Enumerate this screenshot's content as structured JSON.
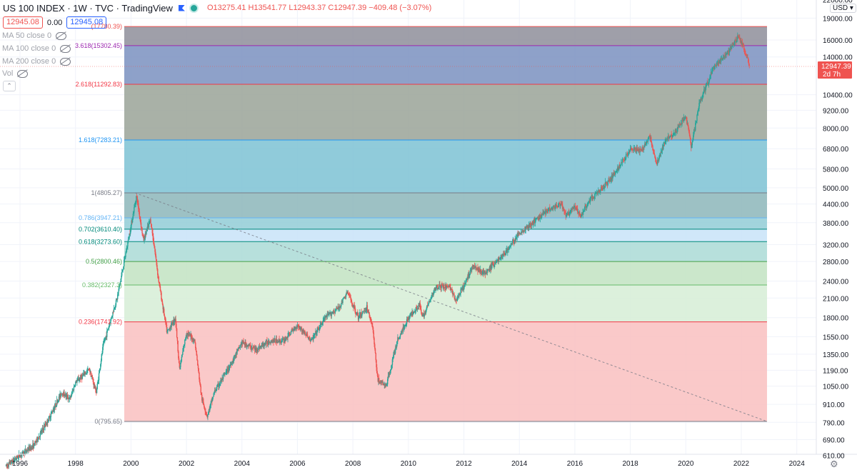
{
  "header": {
    "symbol": "US 100 INDEX · 1W · TVC · TradingView",
    "open": "O13275.41",
    "high": "H13541.77",
    "low": "L12943.37",
    "close": "C12947.39",
    "change": "−409.48 (−3.07%)",
    "sell_price": "12945.08",
    "spread": "0.00",
    "buy_price": "12945.08"
  },
  "indicators": [
    {
      "label": "MA 50 close 0"
    },
    {
      "label": "MA 100 close 0"
    },
    {
      "label": "MA 200 close 0"
    },
    {
      "label": "Vol"
    }
  ],
  "currency": "USD",
  "colors": {
    "up": "#26a69a",
    "down": "#ef5350",
    "axis_text": "#131722",
    "accent": "#2962ff"
  },
  "chart_data": {
    "type": "line",
    "scale": "log",
    "x_ticks": [
      "1996",
      "1998",
      "2000",
      "2002",
      "2004",
      "2006",
      "2008",
      "2010",
      "2012",
      "2014",
      "2016",
      "2018",
      "2020",
      "2022",
      "2024"
    ],
    "y_ticks": [
      "19000.00",
      "16000.00",
      "14000.00",
      "10400.00",
      "9200.00",
      "8000.00",
      "6800.00",
      "5800.00",
      "5000.00",
      "4400.00",
      "3800.00",
      "3200.00",
      "2800.00",
      "2400.00",
      "2100.00",
      "1800.00",
      "1550.00",
      "1350.00",
      "1190.00",
      "1050.00",
      "910.00",
      "790.00",
      "690.00",
      "610.00"
    ],
    "y_ticks_partial": [
      "22000.00"
    ],
    "last_price": "12947.39",
    "countdown": "2d 7h",
    "fib_levels": [
      {
        "label": "(17780.39)",
        "value": 17780.39,
        "color": "#ef5350",
        "fill": "#8e8e9a"
      },
      {
        "label": "3.618(15302.45)",
        "value": 15302.45,
        "color": "#9c27b0",
        "fill": "#7a90c0"
      },
      {
        "label": "2.618(11292.83)",
        "value": 11292.83,
        "color": "#f23645",
        "fill": "#9aa398"
      },
      {
        "label": "1.618(7283.21)",
        "value": 7283.21,
        "color": "#2196f3",
        "fill": "#7dc2d4"
      },
      {
        "label": "1(4805.27)",
        "value": 4805.27,
        "color": "#787b86",
        "fill": "#8cb6ba"
      },
      {
        "label": "0.786(3947.21)",
        "value": 3947.21,
        "color": "#64b5f6",
        "fill": "#92ccd6"
      },
      {
        "label": "0.702(3610.40)",
        "value": 3610.4,
        "color": "#00897b",
        "fill": "#c8e3f8"
      },
      {
        "label": "0.618(3273.60)",
        "value": 3273.6,
        "color": "#00897b",
        "fill": "#aadbd6"
      },
      {
        "label": "0.5(2800.46)",
        "value": 2800.46,
        "color": "#43a047",
        "fill": "#c2e3c2"
      },
      {
        "label": "0.382(2327.3)",
        "value": 2327.3,
        "color": "#66bb6a",
        "fill": "#d6edd6"
      },
      {
        "label": "0.236(1741.92)",
        "value": 1741.92,
        "color": "#f23645",
        "fill": "#f9c0c0"
      },
      {
        "label": "0(795.65)",
        "value": 795.65,
        "color": "#787b86",
        "fill": null
      }
    ],
    "price_path": [
      [
        1995.5,
        560
      ],
      [
        1996.0,
        610
      ],
      [
        1996.5,
        660
      ],
      [
        1997.0,
        800
      ],
      [
        1997.5,
        1000
      ],
      [
        1997.8,
        950
      ],
      [
        1998.0,
        1080
      ],
      [
        1998.5,
        1200
      ],
      [
        1998.75,
        1000
      ],
      [
        1999.0,
        1450
      ],
      [
        1999.5,
        2100
      ],
      [
        1999.9,
        3300
      ],
      [
        2000.2,
        4700
      ],
      [
        2000.45,
        3300
      ],
      [
        2000.7,
        3900
      ],
      [
        2000.85,
        3100
      ],
      [
        2001.0,
        2400
      ],
      [
        2001.3,
        1600
      ],
      [
        2001.6,
        1800
      ],
      [
        2001.75,
        1200
      ],
      [
        2002.0,
        1600
      ],
      [
        2002.3,
        1500
      ],
      [
        2002.55,
        950
      ],
      [
        2002.75,
        830
      ],
      [
        2003.0,
        1000
      ],
      [
        2003.5,
        1200
      ],
      [
        2004.0,
        1480
      ],
      [
        2004.5,
        1400
      ],
      [
        2005.0,
        1500
      ],
      [
        2005.5,
        1500
      ],
      [
        2006.0,
        1700
      ],
      [
        2006.5,
        1500
      ],
      [
        2007.0,
        1800
      ],
      [
        2007.5,
        1950
      ],
      [
        2007.8,
        2200
      ],
      [
        2008.2,
        1800
      ],
      [
        2008.5,
        1950
      ],
      [
        2008.7,
        1700
      ],
      [
        2008.9,
        1100
      ],
      [
        2009.2,
        1050
      ],
      [
        2009.6,
        1500
      ],
      [
        2010.0,
        1800
      ],
      [
        2010.4,
        2000
      ],
      [
        2010.5,
        1800
      ],
      [
        2011.0,
        2300
      ],
      [
        2011.5,
        2300
      ],
      [
        2011.7,
        2050
      ],
      [
        2012.0,
        2300
      ],
      [
        2012.3,
        2700
      ],
      [
        2012.8,
        2550
      ],
      [
        2013.0,
        2700
      ],
      [
        2013.5,
        3000
      ],
      [
        2014.0,
        3500
      ],
      [
        2014.5,
        3800
      ],
      [
        2015.0,
        4200
      ],
      [
        2015.5,
        4400
      ],
      [
        2015.7,
        4000
      ],
      [
        2016.0,
        4300
      ],
      [
        2016.2,
        4000
      ],
      [
        2016.5,
        4500
      ],
      [
        2017.0,
        5000
      ],
      [
        2017.5,
        5700
      ],
      [
        2018.0,
        6800
      ],
      [
        2018.4,
        6700
      ],
      [
        2018.7,
        7500
      ],
      [
        2018.95,
        6000
      ],
      [
        2019.3,
        7400
      ],
      [
        2019.6,
        7700
      ],
      [
        2020.0,
        8800
      ],
      [
        2020.2,
        6900
      ],
      [
        2020.5,
        9800
      ],
      [
        2020.8,
        11500
      ],
      [
        2021.0,
        12800
      ],
      [
        2021.5,
        14500
      ],
      [
        2021.9,
        16500
      ],
      [
        2022.1,
        15000
      ],
      [
        2022.3,
        13000
      ]
    ]
  }
}
